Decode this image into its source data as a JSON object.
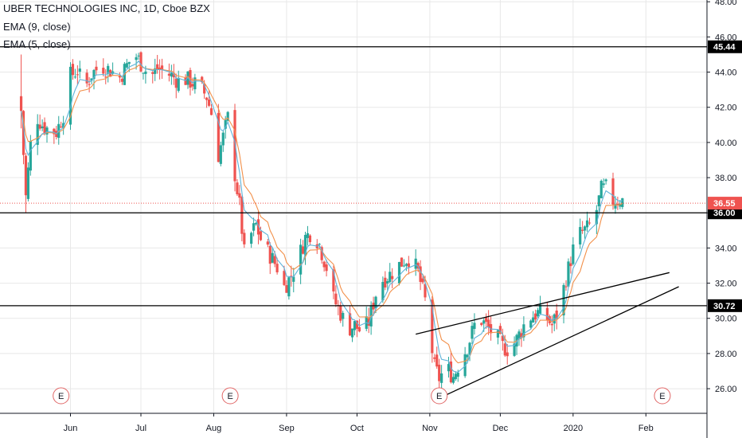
{
  "legend": {
    "title": "UBER TECHNOLOGIES INC, 1D, Cboe BZX",
    "ema9": "EMA (9, close)",
    "ema5": "EMA (5, close)"
  },
  "colors": {
    "up": "#26a69a",
    "down": "#ef5350",
    "ema_fast": "#f2904a",
    "ema_slow": "#5fb3d9",
    "grid": "#e8e8e8",
    "line": "#000000",
    "event": "#e06666"
  },
  "chart_data": {
    "type": "candlestick",
    "ylim": [
      24.6,
      48.1
    ],
    "y_ticks": [
      26,
      28,
      30,
      32,
      34,
      36,
      38,
      40,
      42,
      44,
      46,
      48
    ],
    "y_tick_labels": [
      "26.00",
      "28.00",
      "30.00",
      "32.00",
      "34.00",
      "36.00",
      "38.00",
      "40.00",
      "42.00",
      "44.00",
      "46.00",
      "48.00"
    ],
    "x_ticks": [
      {
        "label": "Jun",
        "day": 21
      },
      {
        "label": "Jul",
        "day": 51
      },
      {
        "label": "Aug",
        "day": 82
      },
      {
        "label": "Sep",
        "day": 113
      },
      {
        "label": "Oct",
        "day": 143
      },
      {
        "label": "Nov",
        "day": 174
      },
      {
        "label": "Dec",
        "day": 204
      },
      {
        "label": "2020",
        "day": 235
      },
      {
        "label": "Feb",
        "day": 266
      }
    ],
    "x_range_days": [
      -9,
      292
    ],
    "horizontal_levels": [
      {
        "value": 45.44,
        "label": "45.44",
        "style": "dark"
      },
      {
        "value": 36.0,
        "label": "36.00",
        "style": "dark"
      },
      {
        "value": 30.72,
        "label": "30.72",
        "style": "dark"
      }
    ],
    "price_tag": {
      "value": 36.55,
      "label": "36.55"
    },
    "trendlines": [
      {
        "x1": 177,
        "y1": 25.4,
        "x2": 280,
        "y2": 31.8
      },
      {
        "x1": 168,
        "y1": 29.1,
        "x2": 276,
        "y2": 32.6
      }
    ],
    "events": [
      {
        "day": 17,
        "label": "E"
      },
      {
        "day": 89,
        "label": "E"
      },
      {
        "day": 178,
        "label": "E"
      },
      {
        "day": 273,
        "label": "E"
      }
    ],
    "anchors": [
      {
        "day": 0,
        "price": 41.8
      },
      {
        "day": 2,
        "price": 36.9
      },
      {
        "day": 4,
        "price": 39.9
      },
      {
        "day": 7,
        "price": 41.4
      },
      {
        "day": 9,
        "price": 41.0
      },
      {
        "day": 12,
        "price": 40.7
      },
      {
        "day": 15,
        "price": 40.6
      },
      {
        "day": 18,
        "price": 41.6
      },
      {
        "day": 21,
        "price": 43.8
      },
      {
        "day": 24,
        "price": 44.1
      },
      {
        "day": 27,
        "price": 43.0
      },
      {
        "day": 30,
        "price": 43.9
      },
      {
        "day": 34,
        "price": 44.4
      },
      {
        "day": 38,
        "price": 44.1
      },
      {
        "day": 42,
        "price": 43.7
      },
      {
        "day": 46,
        "price": 44.6
      },
      {
        "day": 49,
        "price": 44.9
      },
      {
        "day": 52,
        "price": 44.3
      },
      {
        "day": 55,
        "price": 43.7
      },
      {
        "day": 58,
        "price": 44.2
      },
      {
        "day": 61,
        "price": 44.0
      },
      {
        "day": 64,
        "price": 43.8
      },
      {
        "day": 67,
        "price": 43.5
      },
      {
        "day": 70,
        "price": 43.6
      },
      {
        "day": 73,
        "price": 43.4
      },
      {
        "day": 76,
        "price": 43.2
      },
      {
        "day": 79,
        "price": 42.6
      },
      {
        "day": 82,
        "price": 41.2
      },
      {
        "day": 84,
        "price": 39.3
      },
      {
        "day": 86,
        "price": 40.3
      },
      {
        "day": 88,
        "price": 41.4
      },
      {
        "day": 90,
        "price": 39.1
      },
      {
        "day": 93,
        "price": 36.4
      },
      {
        "day": 95,
        "price": 33.7
      },
      {
        "day": 98,
        "price": 34.8
      },
      {
        "day": 100,
        "price": 35.3
      },
      {
        "day": 103,
        "price": 34.1
      },
      {
        "day": 106,
        "price": 33.6
      },
      {
        "day": 109,
        "price": 32.9
      },
      {
        "day": 112,
        "price": 31.8
      },
      {
        "day": 115,
        "price": 32.4
      },
      {
        "day": 118,
        "price": 33.4
      },
      {
        "day": 121,
        "price": 34.6
      },
      {
        "day": 124,
        "price": 35.0
      },
      {
        "day": 127,
        "price": 34.2
      },
      {
        "day": 130,
        "price": 32.9
      },
      {
        "day": 133,
        "price": 31.1
      },
      {
        "day": 136,
        "price": 30.3
      },
      {
        "day": 139,
        "price": 29.4
      },
      {
        "day": 142,
        "price": 29.6
      },
      {
        "day": 145,
        "price": 29.2
      },
      {
        "day": 148,
        "price": 29.8
      },
      {
        "day": 151,
        "price": 31.4
      },
      {
        "day": 154,
        "price": 32.2
      },
      {
        "day": 157,
        "price": 32.5
      },
      {
        "day": 160,
        "price": 32.9
      },
      {
        "day": 163,
        "price": 33.3
      },
      {
        "day": 166,
        "price": 33.5
      },
      {
        "day": 169,
        "price": 32.6
      },
      {
        "day": 172,
        "price": 31.0
      },
      {
        "day": 174,
        "price": 29.1
      },
      {
        "day": 176,
        "price": 27.2
      },
      {
        "day": 178,
        "price": 26.6
      },
      {
        "day": 181,
        "price": 27.2
      },
      {
        "day": 184,
        "price": 26.7
      },
      {
        "day": 187,
        "price": 27.6
      },
      {
        "day": 190,
        "price": 28.4
      },
      {
        "day": 193,
        "price": 29.6
      },
      {
        "day": 196,
        "price": 29.9
      },
      {
        "day": 199,
        "price": 29.4
      },
      {
        "day": 202,
        "price": 29.0
      },
      {
        "day": 205,
        "price": 28.4
      },
      {
        "day": 208,
        "price": 28.2
      },
      {
        "day": 211,
        "price": 28.8
      },
      {
        "day": 214,
        "price": 29.6
      },
      {
        "day": 217,
        "price": 30.1
      },
      {
        "day": 220,
        "price": 30.3
      },
      {
        "day": 223,
        "price": 30.2
      },
      {
        "day": 226,
        "price": 29.6
      },
      {
        "day": 229,
        "price": 30.5
      },
      {
        "day": 232,
        "price": 32.3
      },
      {
        "day": 235,
        "price": 33.9
      },
      {
        "day": 238,
        "price": 34.8
      },
      {
        "day": 241,
        "price": 35.1
      },
      {
        "day": 244,
        "price": 35.6
      },
      {
        "day": 247,
        "price": 37.3
      },
      {
        "day": 249,
        "price": 37.4
      },
      {
        "day": 252,
        "price": 36.7
      },
      {
        "day": 255,
        "price": 36.8
      },
      {
        "day": 257,
        "price": 36.6
      }
    ]
  }
}
